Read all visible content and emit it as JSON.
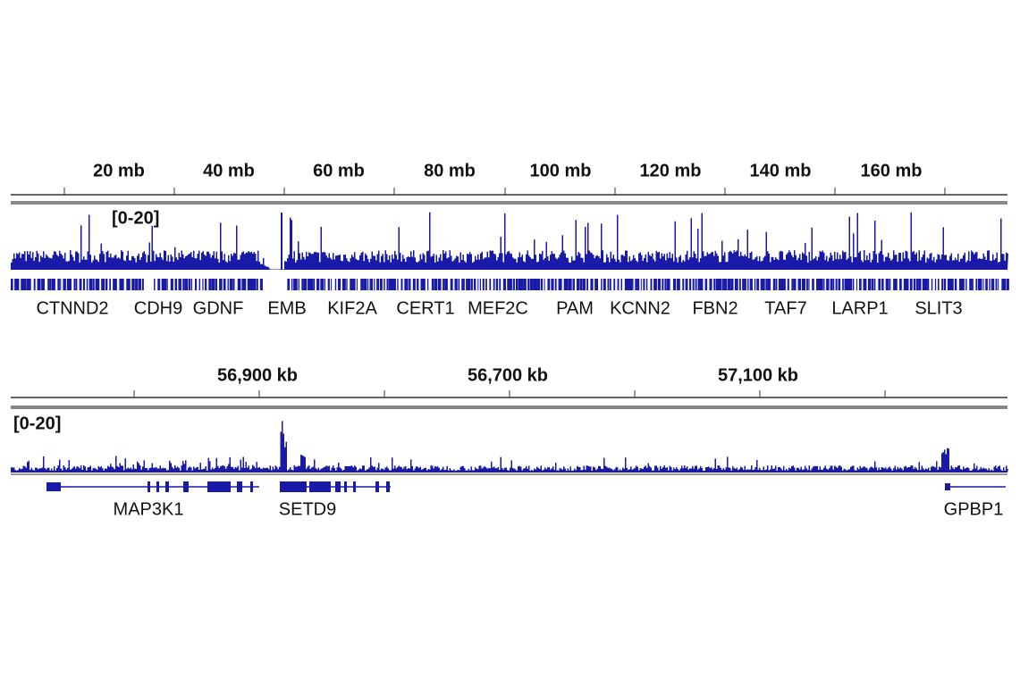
{
  "panel1": {
    "ruler_labels": [
      "20 mb",
      "40 mb",
      "60 mb",
      "80 mb",
      "100 mb",
      "120 mb",
      "140 mb",
      "160 mb"
    ],
    "range": "[0-20]",
    "genes": [
      "CTNND2",
      "CDH9",
      "GDNF",
      "EMB",
      "KIF2A",
      "CERT1",
      "MEF2C",
      "PAM",
      "KCNN2",
      "FBN2",
      "TAF7",
      "LARP1",
      "SLIT3"
    ]
  },
  "panel2": {
    "ruler_labels": [
      "56,900 kb",
      "56,700 kb",
      "57,100 kb"
    ],
    "range": "[0-20]",
    "genes": [
      "MAP3K1",
      "SETD9",
      "GPBP1"
    ]
  }
}
